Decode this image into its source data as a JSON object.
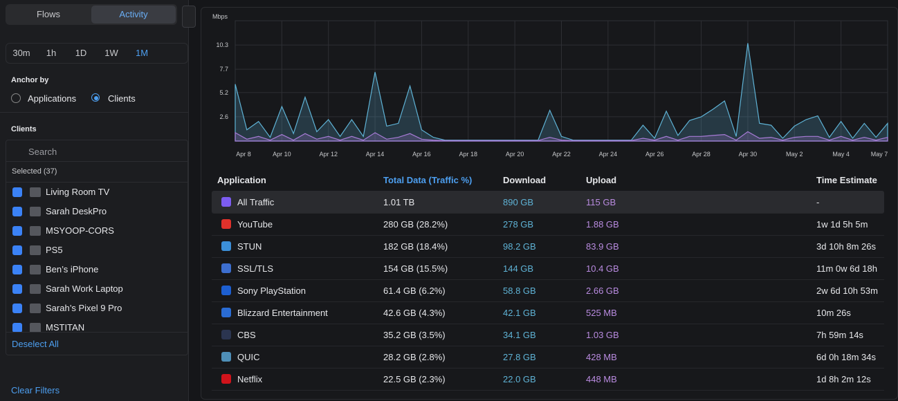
{
  "sidebar": {
    "tabs": [
      "Flows",
      "Activity"
    ],
    "ranges": [
      "30m",
      "1h",
      "1D",
      "1W",
      "1M"
    ],
    "anchor_title": "Anchor by",
    "anchor_options": [
      "Applications",
      "Clients"
    ],
    "clients_title": "Clients",
    "search_placeholder": "Search",
    "selected": "Selected (37)",
    "clients": [
      "Living Room TV",
      "Sarah DeskPro",
      "MSYOOP-CORS",
      "PS5",
      "Ben’s iPhone",
      "Sarah Work Laptop",
      "Sarah’s Pixel 9 Pro",
      "MSTITAN"
    ],
    "deselect": "Deselect All",
    "clear": "Clear Filters"
  },
  "chart_data": {
    "type": "area",
    "y_label": "Mbps",
    "categories": [
      "Apr 8",
      null,
      null,
      null,
      "Apr 10",
      null,
      null,
      null,
      "Apr 12",
      null,
      null,
      null,
      "Apr 14",
      null,
      null,
      null,
      "Apr 16",
      null,
      null,
      null,
      "Apr 18",
      null,
      null,
      null,
      "Apr 20",
      null,
      null,
      null,
      "Apr 22",
      null,
      null,
      null,
      "Apr 24",
      null,
      null,
      null,
      "Apr 26",
      null,
      null,
      null,
      "Apr 28",
      null,
      null,
      null,
      "Apr 30",
      null,
      null,
      null,
      "May 2",
      null,
      null,
      null,
      "May 4",
      null,
      null,
      null,
      "May 7"
    ],
    "ylim": [
      0,
      12.9
    ],
    "yticks": [
      2.6,
      5.2,
      7.7,
      10.3
    ],
    "grid": true,
    "series": [
      {
        "color": "#5fb3d6",
        "values": [
          6.1,
          1.2,
          2.1,
          0.4,
          3.7,
          0.8,
          4.7,
          1.0,
          2.3,
          0.5,
          2.3,
          0.5,
          7.4,
          1.6,
          1.9,
          5.9,
          1.2,
          0.4,
          0.1,
          0.1,
          0.1,
          0.1,
          0.1,
          0.1,
          0.1,
          0.1,
          0.1,
          3.3,
          0.5,
          0.1,
          0.1,
          0.1,
          0.1,
          0.1,
          0.1,
          1.7,
          0.3,
          3.2,
          0.6,
          2.2,
          2.6,
          3.4,
          4.3,
          0.5,
          10.5,
          1.9,
          1.7,
          0.3,
          1.6,
          2.3,
          2.7,
          0.4,
          2.1,
          0.3,
          1.9,
          0.4,
          1.9
        ]
      },
      {
        "color": "#a77bd6",
        "values": [
          0.9,
          0.2,
          0.5,
          0.1,
          0.7,
          0.1,
          0.8,
          0.2,
          0.5,
          0.1,
          0.5,
          0.1,
          0.9,
          0.2,
          0.4,
          0.8,
          0.2,
          0.1,
          0.05,
          0.05,
          0.05,
          0.05,
          0.05,
          0.05,
          0.05,
          0.05,
          0.05,
          0.4,
          0.1,
          0.05,
          0.05,
          0.05,
          0.05,
          0.05,
          0.05,
          0.3,
          0.1,
          0.5,
          0.1,
          0.5,
          0.5,
          0.6,
          0.7,
          0.1,
          1.0,
          0.3,
          0.4,
          0.1,
          0.4,
          0.5,
          0.5,
          0.1,
          0.5,
          0.1,
          0.4,
          0.1,
          0.4
        ]
      }
    ]
  },
  "table": {
    "headers": [
      "Application",
      "Total Data (Traffic %)",
      "Download",
      "Upload",
      "Time Estimate"
    ],
    "rows": [
      [
        "All Traffic",
        "1.01 TB",
        "890 GB",
        "115 GB",
        "-"
      ],
      [
        "YouTube",
        "280 GB (28.2%)",
        "278 GB",
        "1.88 GB",
        "1w 1d 5h 5m"
      ],
      [
        "STUN",
        "182 GB (18.4%)",
        "98.2 GB",
        "83.9 GB",
        "3d 10h 8m 26s"
      ],
      [
        "SSL/TLS",
        "154 GB (15.5%)",
        "144 GB",
        "10.4 GB",
        "11m 0w 6d 18h"
      ],
      [
        "Sony PlayStation",
        "61.4 GB (6.2%)",
        "58.8 GB",
        "2.66 GB",
        "2w 6d 10h 53m"
      ],
      [
        "Blizzard Entertainment",
        "42.6 GB (4.3%)",
        "42.1 GB",
        "525 MB",
        "10m 26s"
      ],
      [
        "CBS",
        "35.2 GB (3.5%)",
        "34.1 GB",
        "1.03 GB",
        "7h 59m 14s"
      ],
      [
        "QUIC",
        "28.2 GB (2.8%)",
        "27.8 GB",
        "428 MB",
        "6d 0h 18m 34s"
      ],
      [
        "Netflix",
        "22.5 GB (2.3%)",
        "22.0 GB",
        "448 MB",
        "1d 8h 2m 12s"
      ]
    ]
  }
}
